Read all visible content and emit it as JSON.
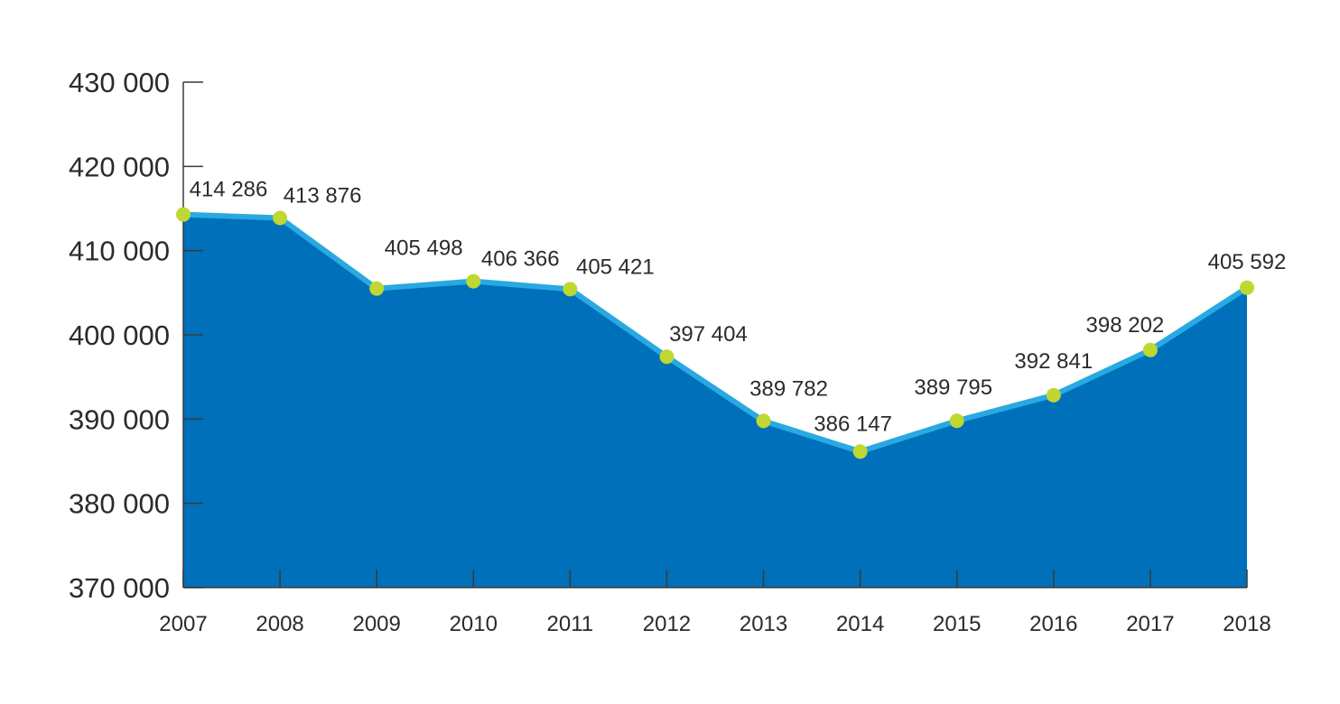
{
  "chart_data": {
    "type": "area",
    "title": "",
    "xlabel": "",
    "ylabel": "",
    "x": [
      "2007",
      "2008",
      "2009",
      "2010",
      "2011",
      "2012",
      "2013",
      "2014",
      "2015",
      "2016",
      "2017",
      "2018"
    ],
    "values": [
      414286,
      413876,
      405498,
      406366,
      405421,
      397404,
      389782,
      386147,
      389795,
      392841,
      398202,
      405592
    ],
    "data_labels": [
      "414 286",
      "413 876",
      "405 498",
      "406 366",
      "405 421",
      "397 404",
      "389 782",
      "386 147",
      "389 795",
      "392 841",
      "398 202",
      "405 592"
    ],
    "ylim": [
      370000,
      430000
    ],
    "yticks": [
      370000,
      380000,
      390000,
      400000,
      410000,
      420000,
      430000
    ],
    "ytick_labels": [
      "370 000",
      "380 000",
      "390 000",
      "400 000",
      "410 000",
      "420 000",
      "430 000"
    ],
    "grid": false,
    "legend": "none",
    "colors": {
      "area_fill": "#0070BA",
      "line": "#29A9E1",
      "markers": "#BFD730",
      "axis": "#3a3a3a",
      "text": "#2b2b2b"
    }
  }
}
